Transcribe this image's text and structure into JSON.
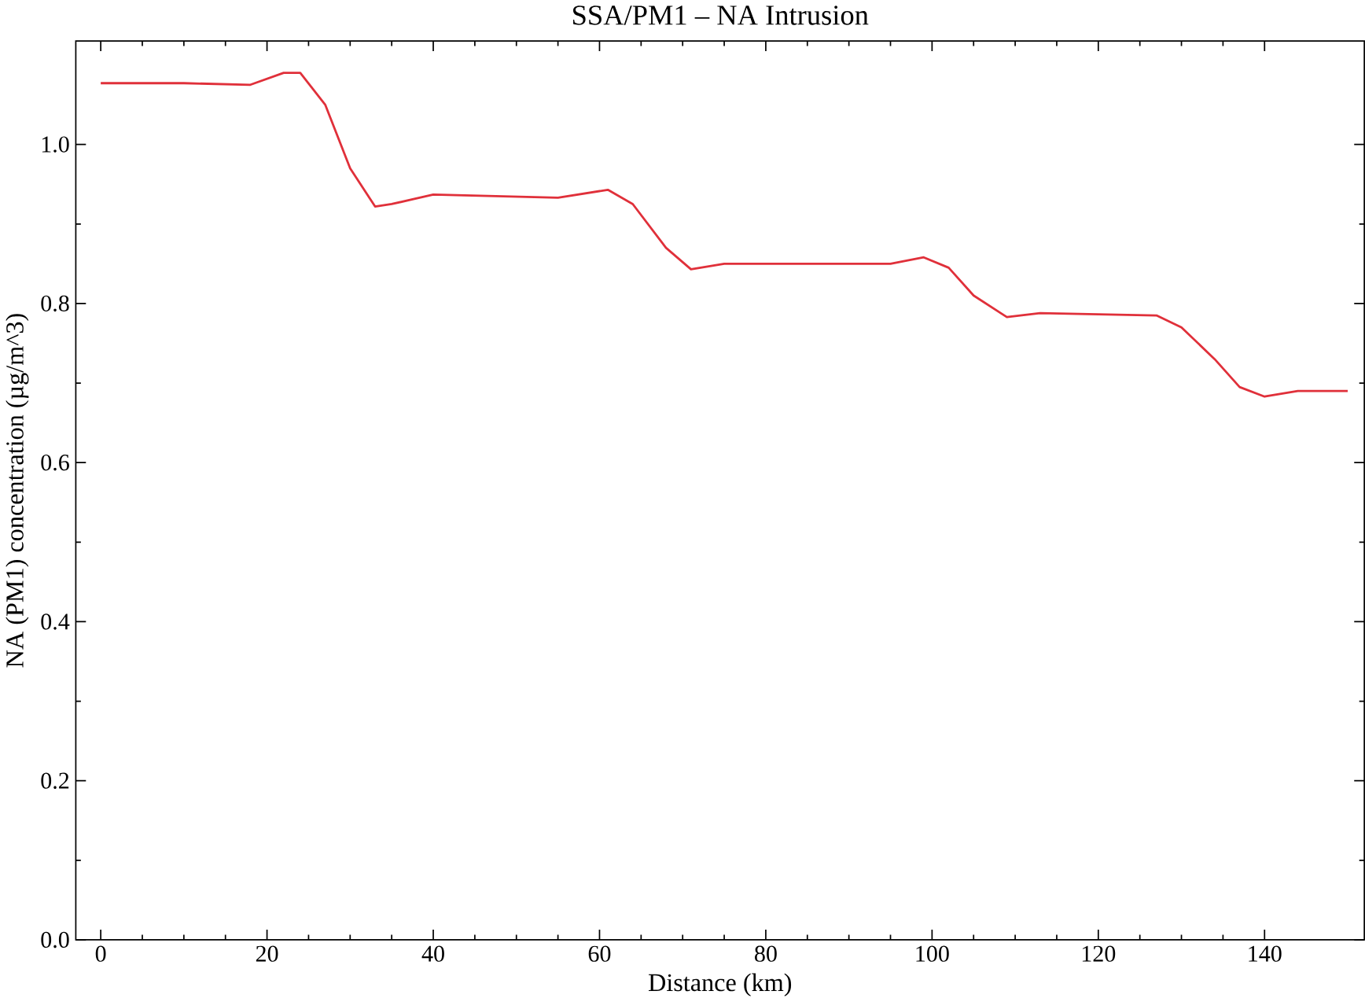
{
  "chart_data": {
    "type": "line",
    "title": "SSA/PM1 – NA Intrusion",
    "xlabel": "Distance (km)",
    "ylabel": "NA (PM1) concentration (µg/m^3)",
    "series": [
      {
        "color": "#e0303a",
        "x": [
          0,
          10,
          18,
          22,
          24,
          27,
          30,
          33,
          35,
          40,
          55,
          61,
          64,
          68,
          71,
          75,
          95,
          99,
          102,
          105,
          109,
          113,
          127,
          130,
          134,
          137,
          140,
          144,
          150
        ],
        "values": [
          1.077,
          1.077,
          1.075,
          1.09,
          1.09,
          1.05,
          0.97,
          0.922,
          0.925,
          0.937,
          0.933,
          0.943,
          0.925,
          0.87,
          0.843,
          0.85,
          0.85,
          0.858,
          0.845,
          0.81,
          0.783,
          0.788,
          0.785,
          0.77,
          0.73,
          0.695,
          0.683,
          0.69,
          0.69
        ]
      }
    ],
    "xlim": [
      -3,
      152
    ],
    "ylim": [
      0,
      1.13
    ],
    "xticks": [
      0,
      20,
      40,
      60,
      80,
      100,
      120,
      140
    ],
    "yticks": [
      {
        "value": 0,
        "label": "0.0"
      },
      {
        "value": 0.2,
        "label": "0.2"
      },
      {
        "value": 0.4,
        "label": "0.4"
      },
      {
        "value": 0.6,
        "label": "0.6"
      },
      {
        "value": 0.8,
        "label": "0.8"
      },
      {
        "value": 1.0,
        "label": "1.0"
      }
    ],
    "line_style": "solid",
    "marker": "none"
  }
}
